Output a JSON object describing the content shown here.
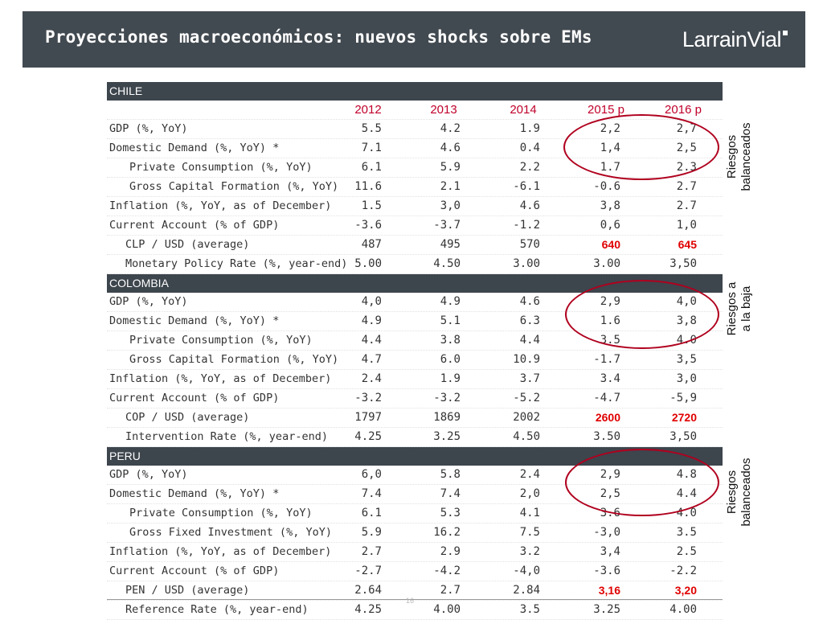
{
  "header": {
    "title": "Proyecciones macroeconómicos: nuevos shocks sobre EMs",
    "logo": "LarrainVial"
  },
  "table": {
    "years": [
      "2012",
      "2013",
      "2014",
      "2015 p",
      "2016 p"
    ],
    "sections": [
      {
        "name": "CHILE",
        "rows": [
          {
            "label": "GDP (%, YoY)",
            "indent": 0,
            "values": [
              "5.5",
              "4.2",
              "1.9",
              "2,2",
              "2,7"
            ]
          },
          {
            "label": "Domestic Demand (%, YoY) *",
            "indent": 0,
            "values": [
              "7.1",
              "4.6",
              "0.4",
              "1,4",
              "2,5"
            ]
          },
          {
            "label": "Private Consumption (%, YoY)",
            "indent": 2,
            "values": [
              "6.1",
              "5.9",
              "2.2",
              "1.7",
              "2.3"
            ]
          },
          {
            "label": "Gross Capital Formation (%, YoY)",
            "indent": 2,
            "values": [
              "11.6",
              "2.1",
              "-6.1",
              "-0.6",
              "2.7"
            ]
          },
          {
            "label": "Inflation (%, YoY, as of December)",
            "indent": 0,
            "values": [
              "1.5",
              "3,0",
              "4.6",
              "3,8",
              "2.7"
            ]
          },
          {
            "label": "Current Account (% of GDP)",
            "indent": 0,
            "values": [
              "-3.6",
              "-3.7",
              "-1.2",
              "0,6",
              "1,0"
            ]
          },
          {
            "label": "CLP / USD (average)",
            "indent": 1,
            "values": [
              "487",
              "495",
              "570",
              "640",
              "645"
            ],
            "highlight": true
          },
          {
            "label": "Monetary Policy Rate (%, year-end)",
            "indent": 1,
            "values": [
              "5.00",
              "4.50",
              "3.00",
              "3.00",
              "3,50"
            ]
          }
        ]
      },
      {
        "name": "COLOMBIA",
        "rows": [
          {
            "label": "GDP (%, YoY)",
            "indent": 0,
            "values": [
              "4,0",
              "4.9",
              "4.6",
              "2,9",
              "4,0"
            ]
          },
          {
            "label": "Domestic Demand (%, YoY) *",
            "indent": 0,
            "values": [
              "4.9",
              "5.1",
              "6.3",
              "1.6",
              "3,8"
            ]
          },
          {
            "label": "Private Consumption (%, YoY)",
            "indent": 2,
            "values": [
              "4.4",
              "3.8",
              "4.4",
              "3.5",
              "4.0"
            ]
          },
          {
            "label": "Gross Capital Formation (%, YoY)",
            "indent": 2,
            "values": [
              "4.7",
              "6.0",
              "10.9",
              "-1.7",
              "3,5"
            ]
          },
          {
            "label": "Inflation (%, YoY, as of December)",
            "indent": 0,
            "values": [
              "2.4",
              "1.9",
              "3.7",
              "3.4",
              "3,0"
            ]
          },
          {
            "label": "Current Account (% of GDP)",
            "indent": 0,
            "values": [
              "-3.2",
              "-3.2",
              "-5.2",
              "-4.7",
              "-5,9"
            ]
          },
          {
            "label": "COP / USD (average)",
            "indent": 1,
            "values": [
              "1797",
              "1869",
              "2002",
              "2600",
              "2720"
            ],
            "highlight": true
          },
          {
            "label": "Intervention Rate (%, year-end)",
            "indent": 1,
            "values": [
              "4.25",
              "3.25",
              "4.50",
              "3.50",
              "3,50"
            ]
          }
        ]
      },
      {
        "name": "PERU",
        "rows": [
          {
            "label": "GDP (%, YoY)",
            "indent": 0,
            "values": [
              "6,0",
              "5.8",
              "2.4",
              "2,9",
              "4.8"
            ]
          },
          {
            "label": "Domestic Demand (%, YoY) *",
            "indent": 0,
            "values": [
              "7.4",
              "7.4",
              "2,0",
              "2,5",
              "4.4"
            ]
          },
          {
            "label": "Private Consumption (%, YoY)",
            "indent": 2,
            "values": [
              "6.1",
              "5.3",
              "4.1",
              "3.6",
              "4.0"
            ]
          },
          {
            "label": "Gross Fixed Investment (%, YoY)",
            "indent": 2,
            "values": [
              "5.9",
              "16.2",
              "7.5",
              "-3,0",
              "3.5"
            ]
          },
          {
            "label": "Inflation (%, YoY, as of December)",
            "indent": 0,
            "values": [
              "2.7",
              "2.9",
              "3.2",
              "3,4",
              "2.5"
            ]
          },
          {
            "label": "Current Account (% of GDP)",
            "indent": 0,
            "values": [
              "-2.7",
              "-4.2",
              "-4,0",
              "-3.6",
              "-2.2"
            ]
          },
          {
            "label": "PEN / USD (average)",
            "indent": 1,
            "values": [
              "2.64",
              "2.7",
              "2.84",
              "3,16",
              "3,20"
            ],
            "highlight": true
          },
          {
            "label": "Reference Rate (%, year-end)",
            "indent": 1,
            "values": [
              "4.25",
              "4.00",
              "3.5",
              "3.25",
              "4.00"
            ]
          }
        ]
      }
    ]
  },
  "annotations": {
    "chile": [
      "Riesgos",
      "balanceados"
    ],
    "colombia": [
      "Riesgos a",
      "a la baja"
    ],
    "peru": [
      "Riesgos",
      "balanceados"
    ]
  },
  "page_number": "16",
  "colors": {
    "header_bg": "#424a51",
    "section_bg": "#3d454d",
    "year_text": "#c0002a",
    "highlight_text": "#e00000",
    "ellipse": "#b0001e"
  }
}
